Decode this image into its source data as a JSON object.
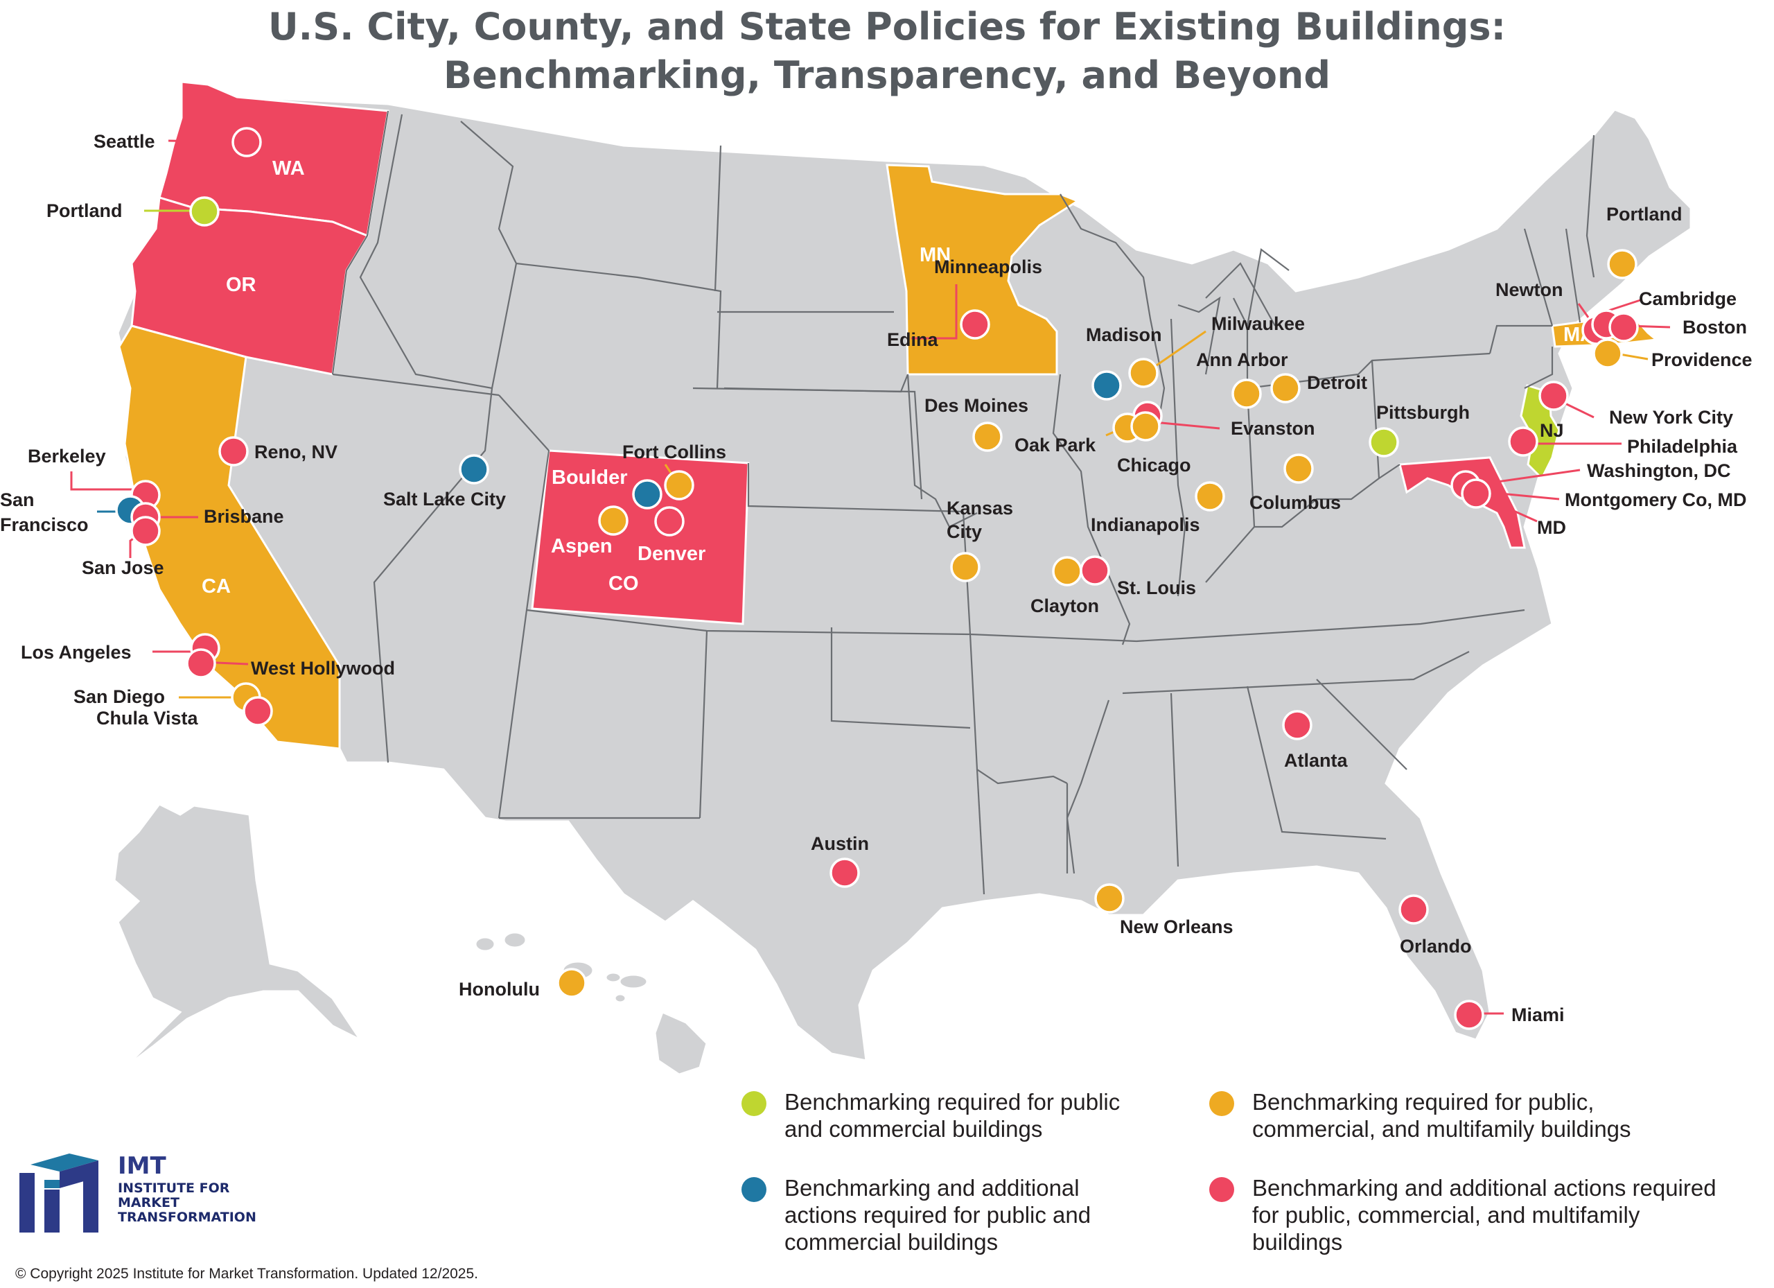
{
  "title": {
    "line1": "U.S. City, County, and State Policies for Existing Buildings:",
    "line2": "Benchmarking, Transparency, and Beyond"
  },
  "colors": {
    "green": "#bfd630",
    "blue": "#1f78a3",
    "orange": "#eeaa22",
    "red": "#ee4660",
    "gray_state": "#d1d2d4",
    "border": "#6b6e72",
    "logo_navy": "#2d3a87"
  },
  "state_labels": {
    "wa": "WA",
    "or": "OR",
    "ca": "CA",
    "co": "CO",
    "mn": "MN",
    "ma": "MA",
    "nj": "NJ",
    "md": "MD"
  },
  "cities": {
    "seattle": "Seattle",
    "portland_or": "Portland",
    "berkeley": "Berkeley",
    "san_francisco_1": "San",
    "san_francisco_2": "Francisco",
    "brisbane": "Brisbane",
    "san_jose": "San Jose",
    "reno": "Reno, NV",
    "los_angeles": "Los Angeles",
    "west_hollywood": "West Hollywood",
    "san_diego": "San Diego",
    "chula_vista": "Chula Vista",
    "salt_lake_city": "Salt Lake City",
    "fort_collins": "Fort Collins",
    "boulder": "Boulder",
    "aspen": "Aspen",
    "denver": "Denver",
    "minneapolis": "Minneapolis",
    "edina": "Edina",
    "des_moines": "Des Moines",
    "kansas_city_1": "Kansas",
    "kansas_city_2": "City",
    "clayton": "Clayton",
    "st_louis": "St. Louis",
    "madison": "Madison",
    "milwaukee": "Milwaukee",
    "oak_park": "Oak Park",
    "chicago": "Chicago",
    "evanston": "Evanston",
    "indianapolis": "Indianapolis",
    "ann_arbor": "Ann Arbor",
    "detroit": "Detroit",
    "columbus": "Columbus",
    "pittsburgh": "Pittsburgh",
    "portland_me": "Portland",
    "newton": "Newton",
    "cambridge": "Cambridge",
    "boston": "Boston",
    "providence": "Providence",
    "new_york_city": "New York City",
    "philadelphia": "Philadelphia",
    "washington_dc": "Washington, DC",
    "montgomery_co": "Montgomery Co, MD",
    "atlanta": "Atlanta",
    "austin": "Austin",
    "new_orleans": "New Orleans",
    "orlando": "Orlando",
    "miami": "Miami",
    "honolulu": "Honolulu"
  },
  "legend": [
    {
      "color": "green",
      "text": "Benchmarking required for public and commercial buildings"
    },
    {
      "color": "orange",
      "text": "Benchmarking required for public, commercial, and multifamily buildings"
    },
    {
      "color": "blue",
      "text": "Benchmarking and additional actions required for public and commercial buildings"
    },
    {
      "color": "red",
      "text": "Benchmarking and additional actions required for public, commercial, and multifamily buildings"
    }
  ],
  "logo": {
    "abbr": "IMT",
    "name": "INSTITUTE FOR MARKET TRANSFORMATION"
  },
  "copyright": "© Copyright 2025 Institute for Market Transformation. Updated 12/2025."
}
